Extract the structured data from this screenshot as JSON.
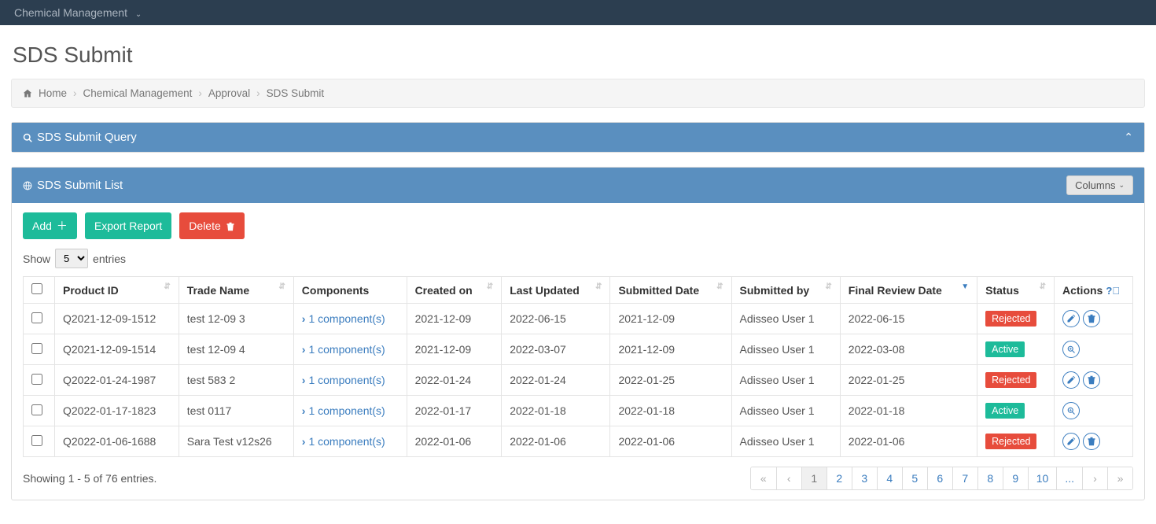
{
  "topnav": {
    "label": "Chemical Management"
  },
  "page": {
    "title": "SDS Submit"
  },
  "breadcrumb": {
    "items": [
      "Home",
      "Chemical Management",
      "Approval",
      "SDS Submit"
    ]
  },
  "queryPanel": {
    "title": "SDS Submit Query"
  },
  "listPanel": {
    "title": "SDS Submit List",
    "columnsBtn": "Columns"
  },
  "toolbar": {
    "add": "Add",
    "export": "Export Report",
    "delete": "Delete"
  },
  "entries": {
    "show": "Show",
    "value": "5",
    "suffix": "entries"
  },
  "table": {
    "headers": {
      "productId": "Product ID",
      "tradeName": "Trade Name",
      "components": "Components",
      "createdOn": "Created on",
      "lastUpdated": "Last Updated",
      "submittedDate": "Submitted Date",
      "submittedBy": "Submitted by",
      "finalReviewDate": "Final Review Date",
      "status": "Status",
      "actions": "Actions"
    },
    "componentLinkText": "1 component(s)",
    "rows": [
      {
        "productId": "Q2021-12-09-1512",
        "tradeName": "test 12-09 3",
        "createdOn": "2021-12-09",
        "lastUpdated": "2022-06-15",
        "submittedDate": "2021-12-09",
        "submittedBy": "Adisseo User 1",
        "finalReviewDate": "2022-06-15",
        "status": "Rejected",
        "actions": [
          "edit",
          "delete"
        ]
      },
      {
        "productId": "Q2021-12-09-1514",
        "tradeName": "test 12-09 4",
        "createdOn": "2021-12-09",
        "lastUpdated": "2022-03-07",
        "submittedDate": "2021-12-09",
        "submittedBy": "Adisseo User 1",
        "finalReviewDate": "2022-03-08",
        "status": "Active",
        "actions": [
          "view"
        ]
      },
      {
        "productId": "Q2022-01-24-1987",
        "tradeName": "test 583 2",
        "createdOn": "2022-01-24",
        "lastUpdated": "2022-01-24",
        "submittedDate": "2022-01-25",
        "submittedBy": "Adisseo User 1",
        "finalReviewDate": "2022-01-25",
        "status": "Rejected",
        "actions": [
          "edit",
          "delete"
        ]
      },
      {
        "productId": "Q2022-01-17-1823",
        "tradeName": "test 0117",
        "createdOn": "2022-01-17",
        "lastUpdated": "2022-01-18",
        "submittedDate": "2022-01-18",
        "submittedBy": "Adisseo User 1",
        "finalReviewDate": "2022-01-18",
        "status": "Active",
        "actions": [
          "view"
        ]
      },
      {
        "productId": "Q2022-01-06-1688",
        "tradeName": "Sara Test v12s26",
        "createdOn": "2022-01-06",
        "lastUpdated": "2022-01-06",
        "submittedDate": "2022-01-06",
        "submittedBy": "Adisseo User 1",
        "finalReviewDate": "2022-01-06",
        "status": "Rejected",
        "actions": [
          "edit",
          "delete"
        ]
      }
    ]
  },
  "footer": {
    "info": "Showing 1 - 5 of 76 entries."
  },
  "pagination": {
    "first": "«",
    "prev": "‹",
    "pages": [
      "1",
      "2",
      "3",
      "4",
      "5",
      "6",
      "7",
      "8",
      "9",
      "10",
      "..."
    ],
    "active": "1",
    "next": "›",
    "last": "»"
  },
  "colors": {
    "topnav": "#2c3e50",
    "panelHeader": "#5a8fbf",
    "link": "#3b7dbf",
    "green": "#1dbb9a",
    "red": "#e74c3c"
  }
}
